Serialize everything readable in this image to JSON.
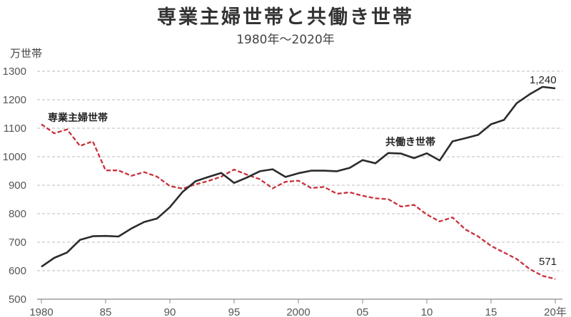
{
  "header": {
    "title": "専業主婦世帯と共働き世帯",
    "subtitle": "1980年～2020年",
    "unit": "万世帯"
  },
  "colors": {
    "housewife": "#c8303a",
    "dual": "#2b2b2b",
    "grid": "#bbbbbb",
    "axis": "#888888"
  },
  "chart_data": {
    "type": "line",
    "title": "専業主婦世帯と共働き世帯",
    "subtitle": "1980年～2020年",
    "ylabel": "万世帯",
    "ylim": [
      500,
      1300
    ],
    "yticks": [
      500,
      600,
      700,
      800,
      900,
      1000,
      1100,
      1200,
      1300
    ],
    "xlim": [
      1980,
      2020
    ],
    "xticks": [
      1980,
      1985,
      1990,
      1995,
      2000,
      2005,
      2010,
      2015,
      2020
    ],
    "xtick_labels": [
      "1980",
      "85",
      "90",
      "95",
      "2000",
      "05",
      "10",
      "15",
      "20年"
    ],
    "grid": true,
    "x": [
      1980,
      1981,
      1982,
      1983,
      1984,
      1985,
      1986,
      1987,
      1988,
      1989,
      1990,
      1991,
      1992,
      1993,
      1994,
      1995,
      1996,
      1997,
      1998,
      1999,
      2000,
      2001,
      2002,
      2003,
      2004,
      2005,
      2006,
      2007,
      2008,
      2009,
      2010,
      2011,
      2012,
      2013,
      2014,
      2015,
      2016,
      2017,
      2018,
      2019,
      2020
    ],
    "series": [
      {
        "name": "専業主婦世帯",
        "style": "dashed",
        "color": "#c8303a",
        "values": [
          1114,
          1082,
          1096,
          1038,
          1054,
          952,
          952,
          933,
          946,
          930,
          897,
          888,
          903,
          915,
          930,
          955,
          937,
          921,
          889,
          912,
          916,
          890,
          894,
          870,
          875,
          863,
          854,
          851,
          825,
          831,
          797,
          773,
          787,
          745,
          720,
          687,
          664,
          641,
          606,
          582,
          571
        ]
      },
      {
        "name": "共働き世帯",
        "style": "solid",
        "color": "#2b2b2b",
        "values": [
          614,
          645,
          664,
          708,
          721,
          722,
          720,
          748,
          771,
          783,
          823,
          877,
          914,
          929,
          943,
          908,
          927,
          949,
          956,
          929,
          942,
          951,
          951,
          949,
          961,
          988,
          977,
          1013,
          1011,
          995,
          1012,
          987,
          1054,
          1065,
          1077,
          1114,
          1129,
          1188,
          1219,
          1245,
          1240
        ]
      }
    ],
    "series_labels": [
      "専業主婦世帯",
      "共働き世帯"
    ],
    "end_labels": [
      "1,240",
      "571"
    ]
  }
}
